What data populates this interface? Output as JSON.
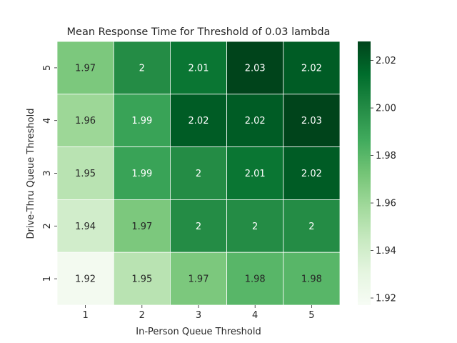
{
  "chart_data": {
    "type": "heatmap",
    "title": "Mean Response Time for Threshold of 0.03 lambda",
    "xlabel": "In-Person Queue Threshold",
    "ylabel": "Drive-Thru Queue Threshold",
    "x_categories": [
      "1",
      "2",
      "3",
      "4",
      "5"
    ],
    "y_categories": [
      "5",
      "4",
      "3",
      "2",
      "1"
    ],
    "values": [
      [
        1.97,
        2,
        2.01,
        2.03,
        2.02
      ],
      [
        1.96,
        1.99,
        2.02,
        2.02,
        2.03
      ],
      [
        1.95,
        1.99,
        2,
        2.01,
        2.02
      ],
      [
        1.94,
        1.97,
        2,
        2,
        2
      ],
      [
        1.92,
        1.95,
        1.97,
        1.98,
        1.98
      ]
    ],
    "value_labels": [
      [
        "1.97",
        "2",
        "2.01",
        "2.03",
        "2.02"
      ],
      [
        "1.96",
        "1.99",
        "2.02",
        "2.02",
        "2.03"
      ],
      [
        "1.95",
        "1.99",
        "2",
        "2.01",
        "2.02"
      ],
      [
        "1.94",
        "1.97",
        "2",
        "2",
        "2"
      ],
      [
        "1.92",
        "1.95",
        "1.97",
        "1.98",
        "1.98"
      ]
    ],
    "colorbar": {
      "colormap": "Greens",
      "range": [
        1.917,
        2.028
      ],
      "ticks": [
        "1.92",
        "1.94",
        "1.96",
        "1.98",
        "2.00",
        "2.02"
      ]
    },
    "grid": "white lines between cells"
  }
}
